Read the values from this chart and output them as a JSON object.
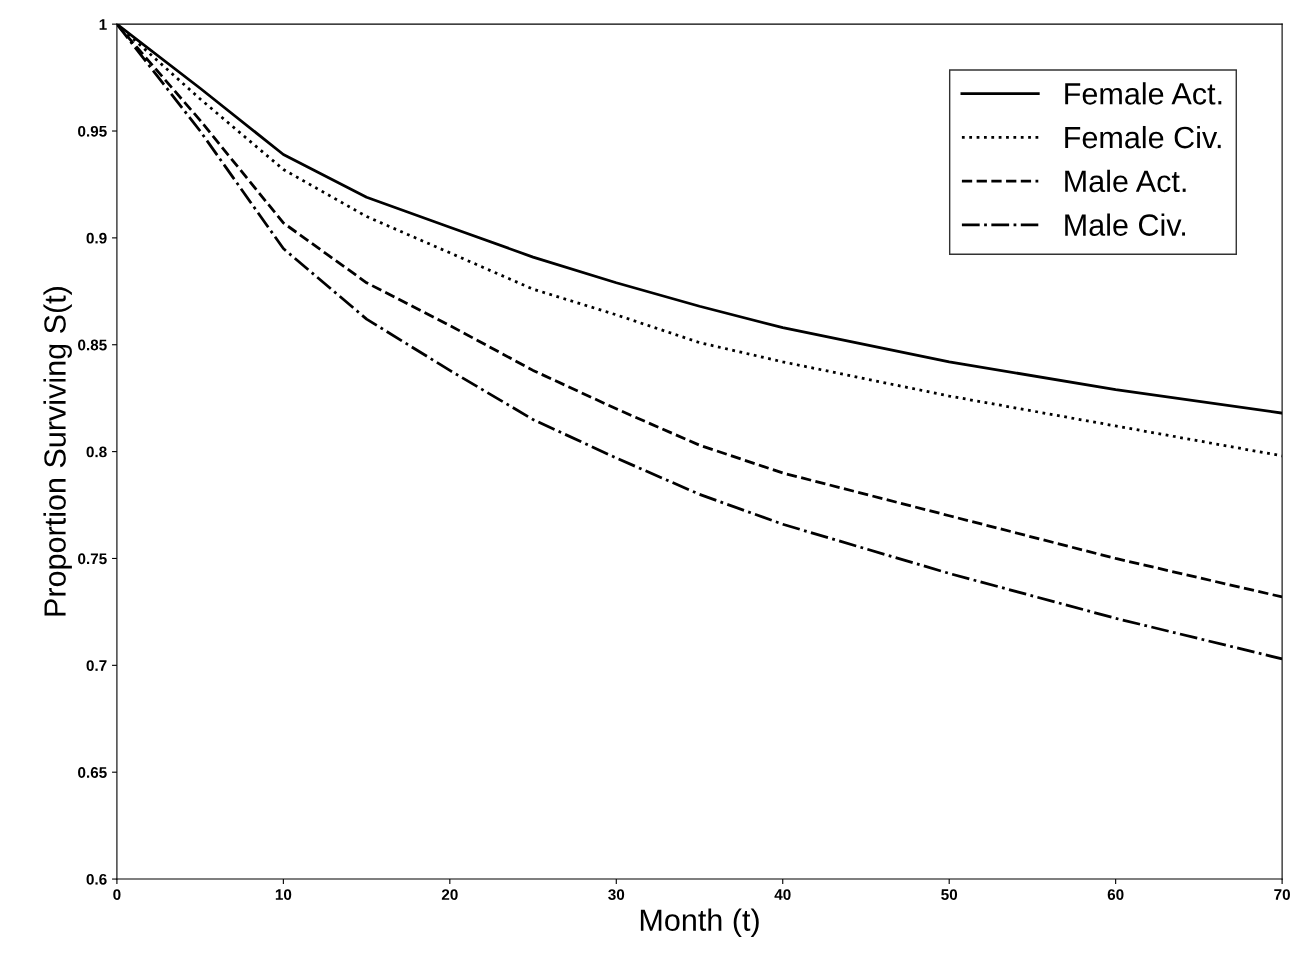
{
  "chart_data": {
    "type": "line",
    "xlabel": "Month (t)",
    "ylabel": "Proportion Surviving S(t)",
    "x": [
      0,
      5,
      10,
      15,
      20,
      25,
      30,
      35,
      40,
      50,
      60,
      70
    ],
    "series": [
      {
        "name": "Female Act.",
        "color": "#000000",
        "line_style": "solid",
        "values": [
          1,
          0.97,
          0.939,
          0.919,
          0.905,
          0.891,
          0.879,
          0.868,
          0.858,
          0.842,
          0.829,
          0.818
        ]
      },
      {
        "name": "Female Civ.",
        "color": "#000000",
        "line_style": "dotted",
        "values": [
          1,
          0.965,
          0.932,
          0.91,
          0.893,
          0.876,
          0.864,
          0.851,
          0.842,
          0.826,
          0.812,
          0.798
        ]
      },
      {
        "name": "Male Act.",
        "color": "#000000",
        "line_style": "dashed",
        "values": [
          1,
          0.955,
          0.907,
          0.879,
          0.859,
          0.838,
          0.82,
          0.803,
          0.79,
          0.77,
          0.75,
          0.732
        ]
      },
      {
        "name": "Male Civ.",
        "color": "#000000",
        "line_style": "dashdot",
        "values": [
          1,
          0.95,
          0.895,
          0.862,
          0.838,
          0.815,
          0.797,
          0.78,
          0.766,
          0.743,
          0.722,
          0.703
        ]
      }
    ],
    "xlim": [
      0,
      70
    ],
    "xticks": [
      0,
      10,
      20,
      30,
      40,
      50,
      60,
      70
    ],
    "ylim": [
      0.6,
      1
    ],
    "yticks": [
      0.6,
      0.65,
      0.7,
      0.75,
      0.8,
      0.85,
      0.9,
      0.95,
      1
    ],
    "grid": false,
    "legend": "top right",
    "marker": "none"
  }
}
